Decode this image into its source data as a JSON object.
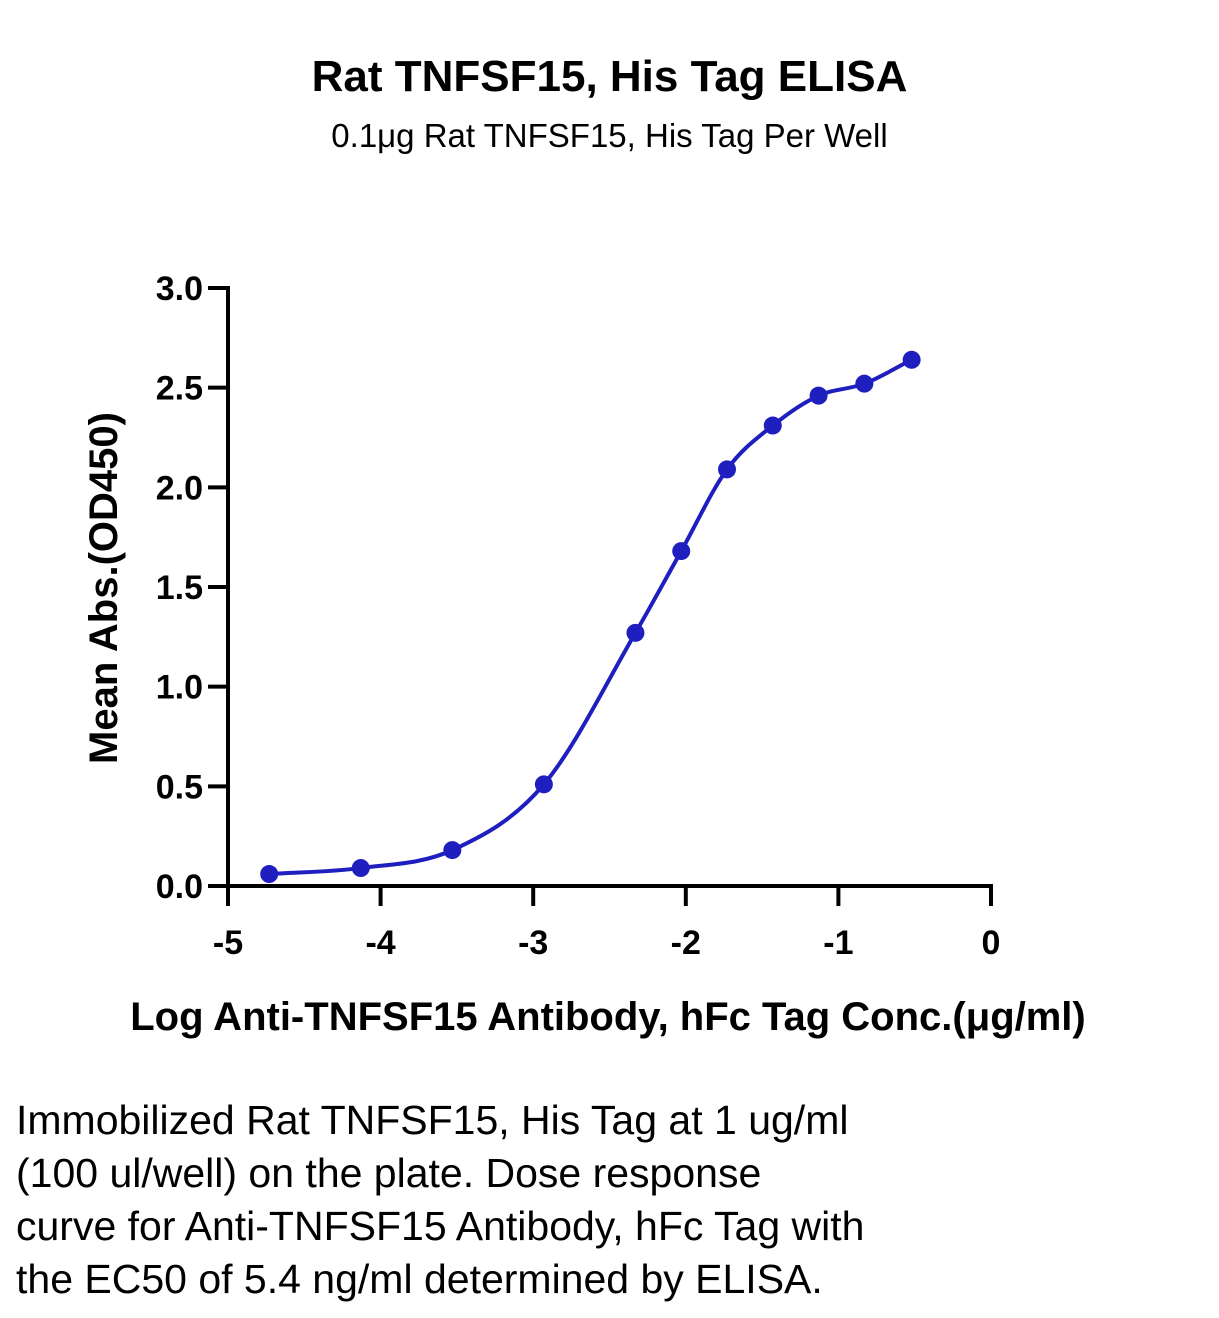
{
  "chart_data": {
    "type": "scatter",
    "title": "Rat TNFSF15, His Tag ELISA",
    "subtitle": "0.1μg Rat TNFSF15, His Tag Per Well",
    "xlabel": "Log Anti-TNFSF15 Antibody, hFc Tag Conc.(μg/ml)",
    "ylabel": "Mean Abs.(OD450)",
    "xlim": [
      -5,
      0
    ],
    "ylim": [
      0,
      3.0
    ],
    "xticks": [
      "-5",
      "-4",
      "-3",
      "-2",
      "-1",
      "0"
    ],
    "yticks": [
      "0.0",
      "0.5",
      "1.0",
      "1.5",
      "2.0",
      "2.5",
      "3.0"
    ],
    "series": [
      {
        "x": [
          -4.73,
          -4.13,
          -3.53,
          -2.93,
          -2.33,
          -2.03,
          -1.73,
          -1.43,
          -1.13,
          -0.83,
          -0.52
        ],
        "y": [
          0.06,
          0.09,
          0.18,
          0.51,
          1.27,
          1.68,
          2.09,
          2.31,
          2.46,
          2.52,
          2.64
        ],
        "fit": "4PL",
        "color": "#1f1fbf"
      }
    ],
    "grid": false,
    "legend": "none"
  },
  "caption": [
    "Immobilized Rat TNFSF15, His Tag at 1 ug/ml",
    "(100 ul/well) on the plate. Dose response",
    "curve for Anti-TNFSF15 Antibody, hFc Tag with",
    "the EC50 of 5.4 ng/ml determined by ELISA."
  ]
}
